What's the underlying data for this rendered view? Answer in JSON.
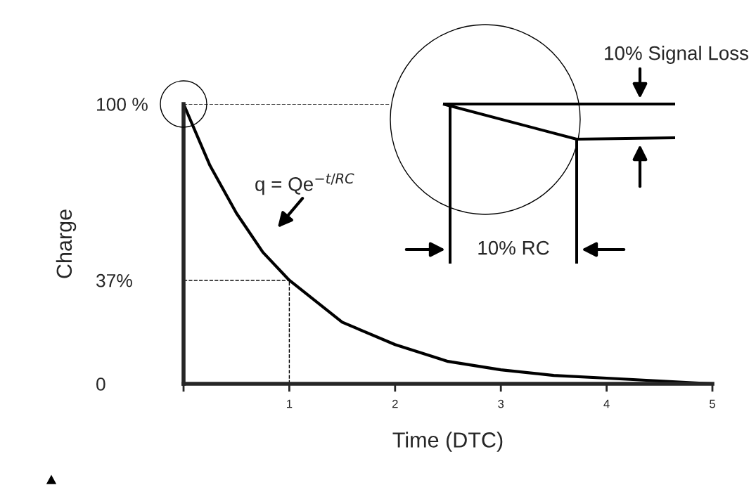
{
  "chart_data": {
    "type": "line",
    "xlabel": "Time (DTC)",
    "ylabel": "Charge",
    "x": [
      0,
      0.25,
      0.5,
      0.75,
      1,
      1.5,
      2,
      2.5,
      3,
      3.5,
      4,
      4.5,
      5
    ],
    "series": [
      {
        "color": "#000000",
        "values": [
          100,
          78,
          61,
          47,
          37,
          22,
          14,
          8,
          5,
          3,
          2,
          1,
          0
        ]
      }
    ],
    "xlim": [
      0,
      5
    ],
    "xticks": [
      {
        "value": 0,
        "label": null
      },
      1,
      2,
      3,
      4,
      5
    ],
    "ylim": [
      0,
      100
    ],
    "yticks": [
      0,
      {
        "value": 37,
        "label": "37%"
      },
      {
        "value": 100,
        "label": "100 %"
      }
    ],
    "ref_lines": [
      {
        "axis": "y",
        "value": 100,
        "line_style": "dashed",
        "color": "#000000"
      },
      {
        "axis": "y",
        "value": 37,
        "line_style": "dashed",
        "color": "#000000"
      },
      {
        "axis": "x",
        "value": 1,
        "line_style": "dashed",
        "color": "#000000"
      }
    ],
    "annotations": [
      "q = Qe$^{−t/RC}$",
      "10% Signal Loss",
      "10% RC"
    ],
    "grid": false,
    "legend": false,
    "marker": "none",
    "line_style": "solid"
  }
}
